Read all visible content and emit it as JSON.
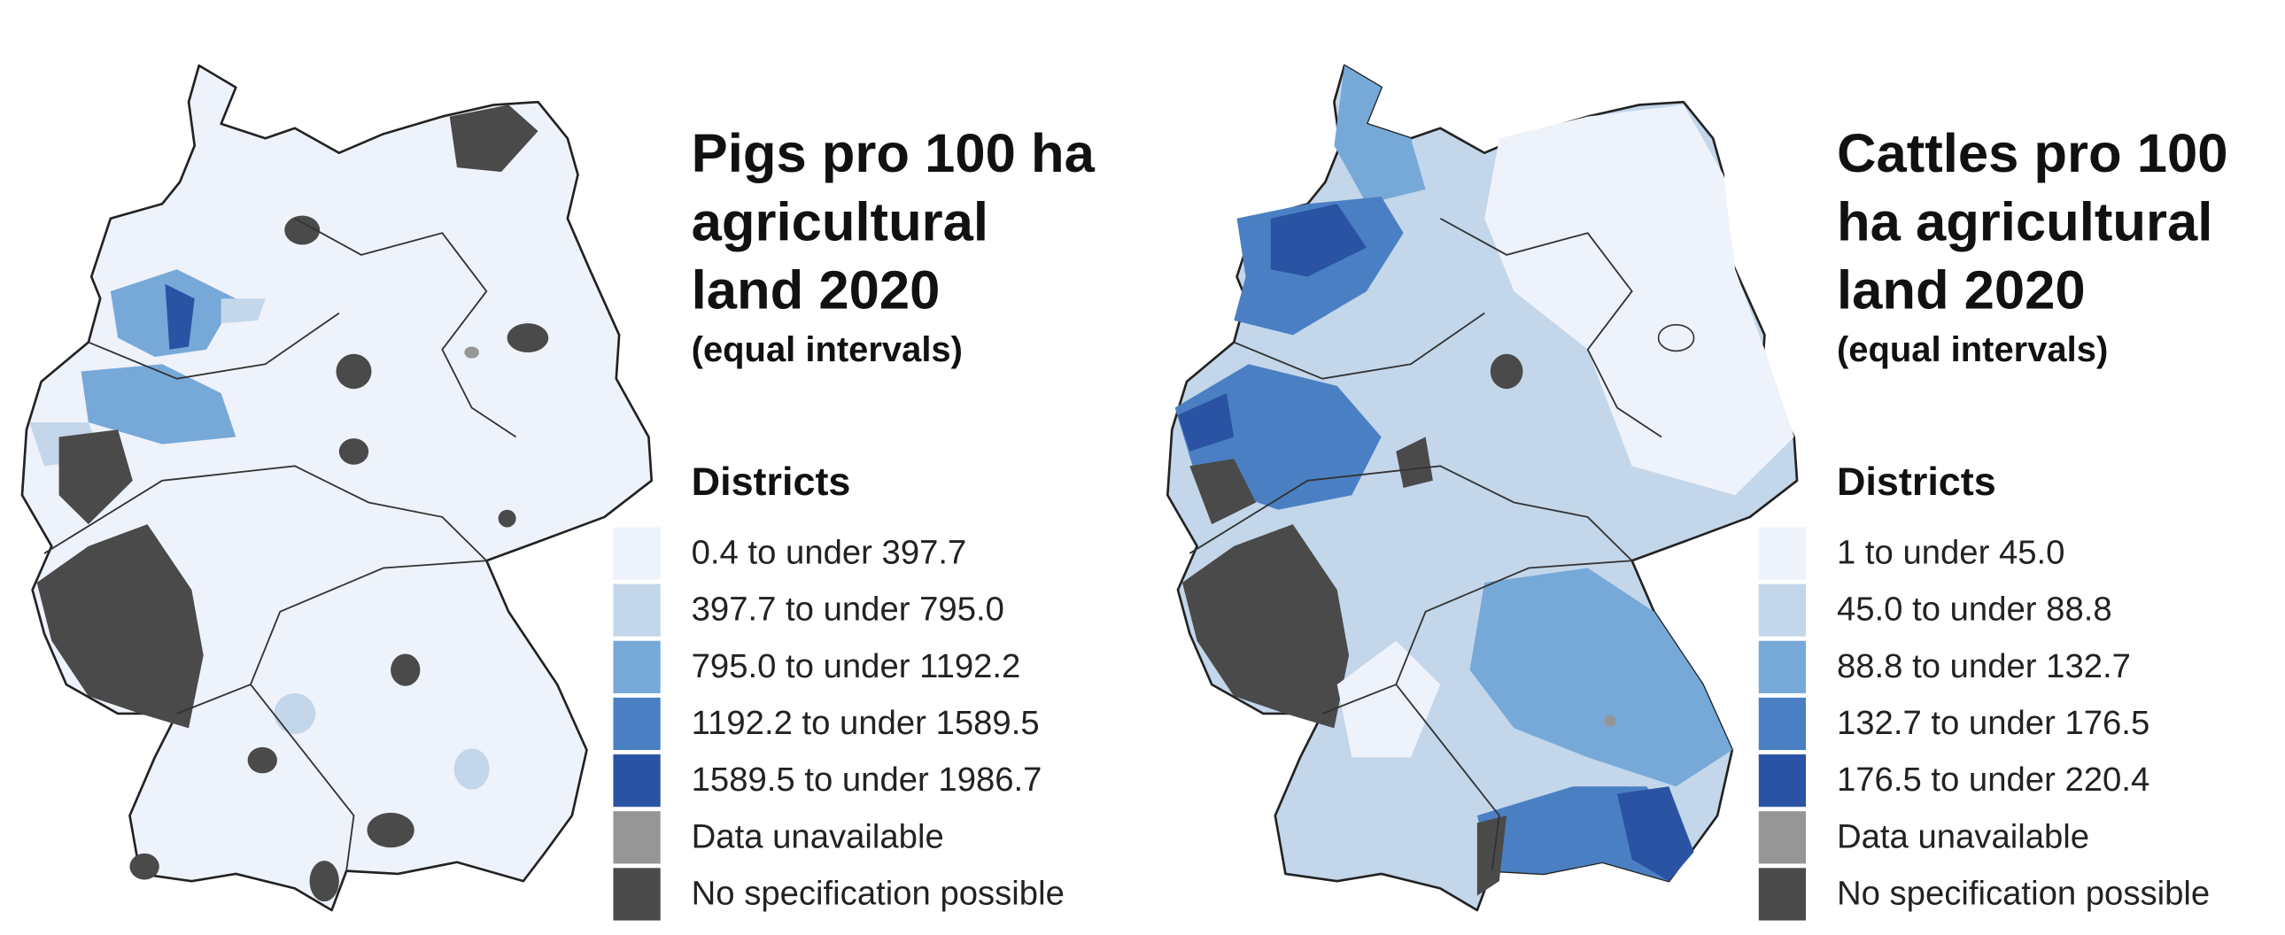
{
  "panels": [
    {
      "title_lines": [
        "Pigs pro 100 ha",
        "agricultural",
        "land 2020"
      ],
      "subtitle": "(equal intervals)",
      "legend": {
        "title": "Districts",
        "items": [
          {
            "label": "0.4 to under 397.7",
            "color": "#eef2fb"
          },
          {
            "label": "397.7 to under 795.0",
            "color": "#c3d6ea"
          },
          {
            "label": "795.0 to under 1192.2",
            "color": "#76a9d8"
          },
          {
            "label": "1192.2 to under 1589.5",
            "color": "#4a80c3"
          },
          {
            "label": "1589.5 to under 1986.7",
            "color": "#2a53a3"
          },
          {
            "label": "Data unavailable",
            "color": "#969696"
          },
          {
            "label": "No specification possible",
            "color": "#4a4a4a"
          }
        ]
      }
    },
    {
      "title_lines": [
        "Cattles pro 100",
        "ha agricultural",
        "land 2020"
      ],
      "subtitle": "(equal intervals)",
      "legend": {
        "title": "Districts",
        "items": [
          {
            "label": "1 to under 45.0",
            "color": "#eef2fb"
          },
          {
            "label": "45.0 to under 88.8",
            "color": "#c3d6ea"
          },
          {
            "label": "88.8 to under 132.7",
            "color": "#76a9d8"
          },
          {
            "label": "132.7 to under 176.5",
            "color": "#4a80c3"
          },
          {
            "label": "176.5 to under 220.4",
            "color": "#2a53a3"
          },
          {
            "label": "Data unavailable",
            "color": "#969696"
          },
          {
            "label": "No specification possible",
            "color": "#4a4a4a"
          }
        ]
      }
    }
  ]
}
